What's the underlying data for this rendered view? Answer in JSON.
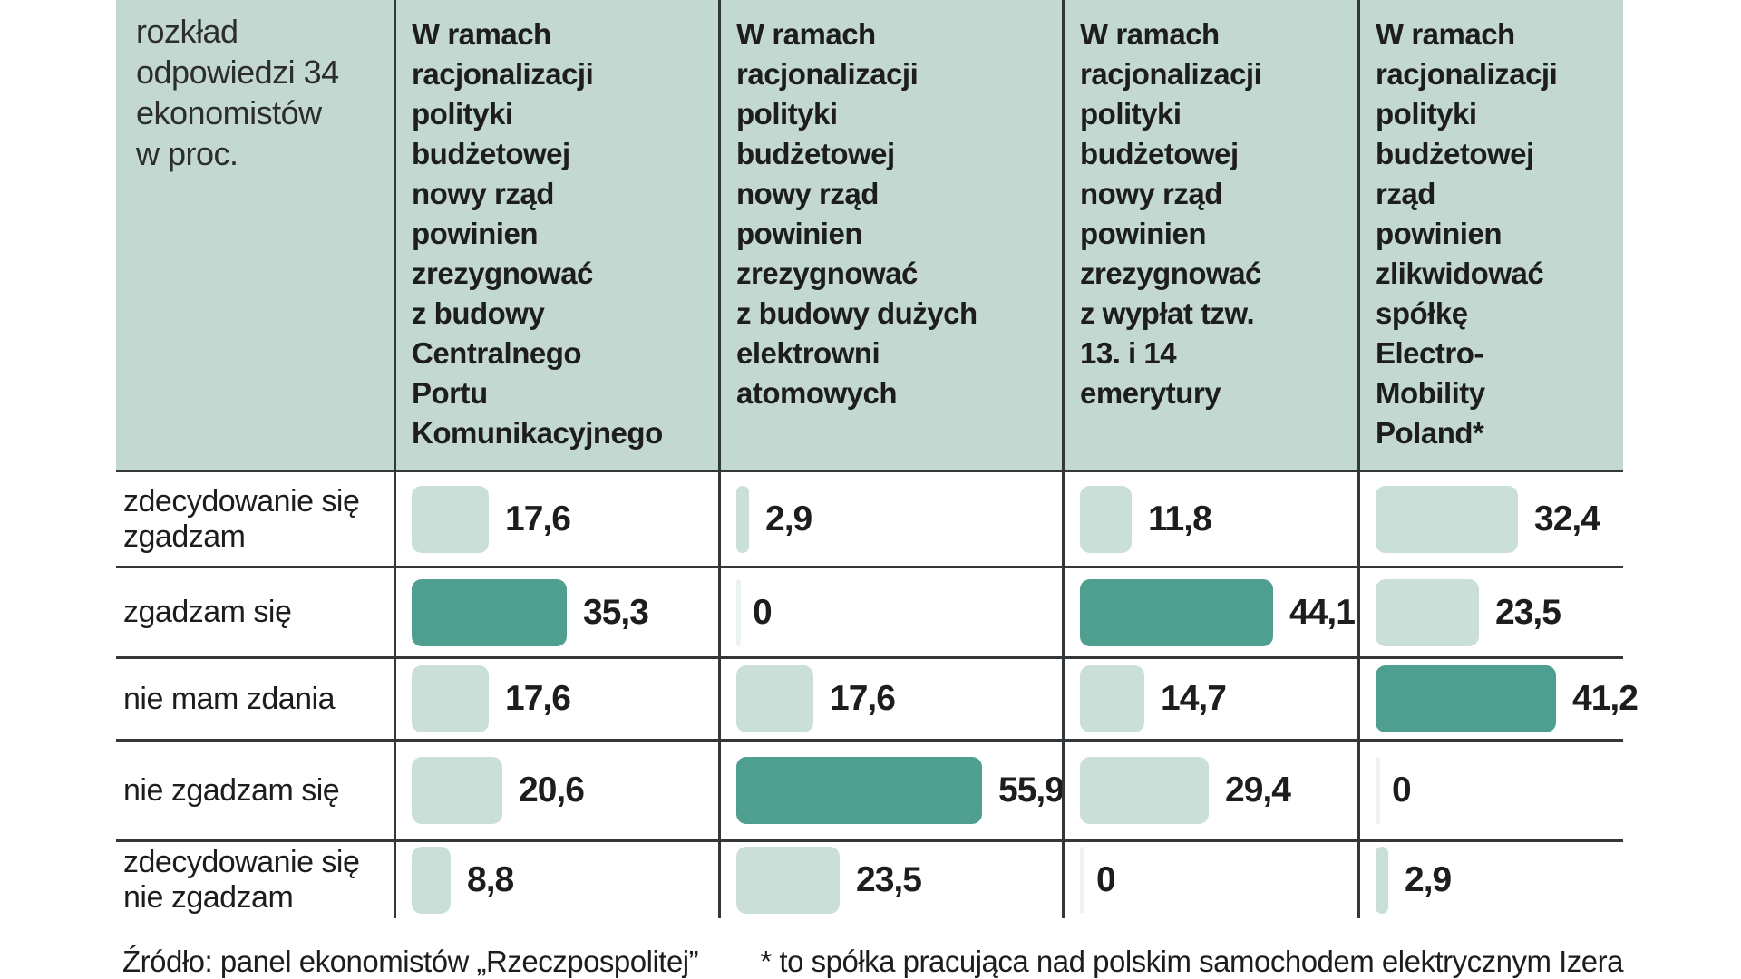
{
  "header": {
    "note": "rozkład\nodpowiedzi 34\nekonomistów\nw proc.",
    "questions": [
      "W ramach\nracjonalizacji\npolityki\nbudżetowej\nnowy rząd\npowinien\nzrezygnować\nz budowy\nCentralnego\nPortu\nKomunikacyjnego",
      "W ramach\nracjonalizacji\npolityki\nbudżetowej\nnowy rząd\npowinien\nzrezygnować\nz budowy dużych\nelektrowni\natomowych",
      "W ramach\nracjonalizacji\npolityki\nbudżetowej\nnowy rząd\npowinien\nzrezygnować\nz wypłat tzw.\n13. i 14\nemerytury",
      "W ramach\nracjonalizacji\npolityki\nbudżetowej\nrząd\npowinien\nzlikwidować\nspółkę\nElectro-\nMobility\nPoland*"
    ]
  },
  "rows": [
    {
      "label": "zdecydowanie się\nzgadzam",
      "cells": [
        {
          "value": 17.6,
          "display": "17,6"
        },
        {
          "value": 2.9,
          "display": "2,9"
        },
        {
          "value": 11.8,
          "display": "11,8"
        },
        {
          "value": 32.4,
          "display": "32,4"
        }
      ]
    },
    {
      "label": "zgadzam się",
      "cells": [
        {
          "value": 35.3,
          "display": "35,3"
        },
        {
          "value": 0,
          "display": "0"
        },
        {
          "value": 44.1,
          "display": "44,1"
        },
        {
          "value": 23.5,
          "display": "23,5"
        }
      ]
    },
    {
      "label": "nie mam zdania",
      "cells": [
        {
          "value": 17.6,
          "display": "17,6"
        },
        {
          "value": 17.6,
          "display": "17,6"
        },
        {
          "value": 14.7,
          "display": "14,7"
        },
        {
          "value": 41.2,
          "display": "41,2"
        }
      ]
    },
    {
      "label": "nie zgadzam się",
      "cells": [
        {
          "value": 20.6,
          "display": "20,6"
        },
        {
          "value": 55.9,
          "display": "55,9"
        },
        {
          "value": 29.4,
          "display": "29,4"
        },
        {
          "value": 0,
          "display": "0"
        }
      ]
    },
    {
      "label": "zdecydowanie się\nnie zgadzam",
      "cells": [
        {
          "value": 8.8,
          "display": "8,8"
        },
        {
          "value": 23.5,
          "display": "23,5"
        },
        {
          "value": 0,
          "display": "0"
        },
        {
          "value": 2.9,
          "display": "2,9"
        }
      ]
    }
  ],
  "footer": {
    "source": "Źródło: panel ekonomistów „Rzeczpospolitej”",
    "footnote": "* to spółka pracująca nad polskim samochodem elektrycznym Izera"
  },
  "colors": {
    "header_bg": "#c3d8d1",
    "bar_light": "#c9dfd8",
    "bar_dark": "#4f9f90",
    "bar_zero": "#ecf3f0",
    "grid_line": "#34373a",
    "text": "#1d1d1b"
  },
  "chart_data": {
    "type": "bar",
    "orientation": "horizontal",
    "title": "rozkład odpowiedzi 34 ekonomistów w proc.",
    "unit": "percent of 34 economists",
    "categories": [
      "zdecydowanie się zgadzam",
      "zgadzam się",
      "nie mam zdania",
      "nie zgadzam się",
      "zdecydowanie się nie zgadzam"
    ],
    "series": [
      {
        "name": "W ramach racjonalizacji polityki budżetowej nowy rząd powinien zrezygnować z budowy Centralnego Portu Komunikacyjnego",
        "values": [
          17.6,
          35.3,
          17.6,
          20.6,
          8.8
        ]
      },
      {
        "name": "W ramach racjonalizacji polityki budżetowej nowy rząd powinien zrezygnować z budowy dużych elektrowni atomowych",
        "values": [
          2.9,
          0,
          17.6,
          55.9,
          23.5
        ]
      },
      {
        "name": "W ramach racjonalizacji polityki budżetowej nowy rząd powinien zrezygnować z wypłat tzw. 13. i 14 emerytury",
        "values": [
          11.8,
          44.1,
          14.7,
          29.4,
          0
        ]
      },
      {
        "name": "W ramach racjonalizacji polityki budżetowej rząd powinien zlikwidować spółkę Electro-Mobility Poland*",
        "values": [
          32.4,
          23.5,
          41.2,
          0,
          2.9
        ]
      }
    ],
    "xlim": [
      0,
      60
    ],
    "grid": false,
    "legend_position": "none",
    "annotation": "maximum value in each question column is highlighted with dark teal",
    "source": "Źródło: panel ekonomistów „Rzeczpospolitej”",
    "footnote": "* to spółka pracująca nad polskim samochodem elektrycznym Izera"
  }
}
